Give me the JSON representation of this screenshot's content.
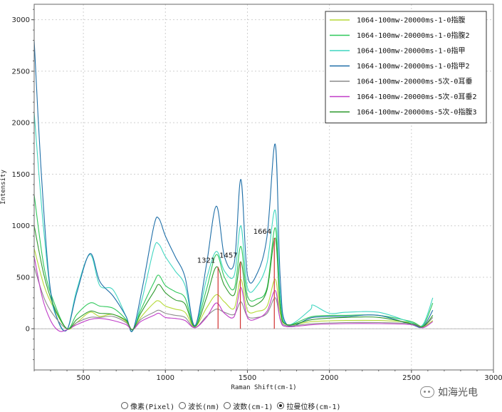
{
  "chart_data": {
    "type": "line",
    "title": "",
    "xlabel": "Raman Shift(cm-1)",
    "ylabel": "Intensity",
    "xlim": [
      200,
      3000
    ],
    "ylim": [
      -400,
      3150
    ],
    "xticks": [
      500,
      1000,
      1500,
      2000,
      2500,
      3000
    ],
    "yticks": [
      0,
      500,
      1000,
      1500,
      2000,
      2500,
      3000
    ],
    "grid": true,
    "legend_position": "top-right",
    "series": [
      {
        "name": "1064-100mw-20000ms-1-0指腹",
        "color": "#b5d936",
        "points": [
          [
            200,
            780
          ],
          [
            260,
            420
          ],
          [
            320,
            200
          ],
          [
            400,
            0
          ],
          [
            460,
            60
          ],
          [
            540,
            160
          ],
          [
            600,
            120
          ],
          [
            680,
            140
          ],
          [
            760,
            70
          ],
          [
            800,
            -10
          ],
          [
            850,
            110
          ],
          [
            930,
            250
          ],
          [
            960,
            270
          ],
          [
            1000,
            220
          ],
          [
            1060,
            190
          ],
          [
            1120,
            160
          ],
          [
            1180,
            20
          ],
          [
            1250,
            200
          ],
          [
            1310,
            330
          ],
          [
            1360,
            260
          ],
          [
            1420,
            200
          ],
          [
            1460,
            480
          ],
          [
            1500,
            180
          ],
          [
            1560,
            170
          ],
          [
            1620,
            220
          ],
          [
            1670,
            480
          ],
          [
            1700,
            150
          ],
          [
            1740,
            40
          ],
          [
            1900,
            70
          ],
          [
            2100,
            80
          ],
          [
            2300,
            80
          ],
          [
            2500,
            60
          ],
          [
            2570,
            20
          ],
          [
            2630,
            80
          ]
        ]
      },
      {
        "name": "1064-100mw-20000ms-1-0指腹2",
        "color": "#2ec85a",
        "points": [
          [
            200,
            1300
          ],
          [
            260,
            600
          ],
          [
            320,
            260
          ],
          [
            400,
            0
          ],
          [
            460,
            140
          ],
          [
            540,
            250
          ],
          [
            600,
            220
          ],
          [
            680,
            200
          ],
          [
            760,
            90
          ],
          [
            800,
            -10
          ],
          [
            850,
            180
          ],
          [
            930,
            450
          ],
          [
            960,
            520
          ],
          [
            1000,
            420
          ],
          [
            1060,
            360
          ],
          [
            1120,
            300
          ],
          [
            1180,
            30
          ],
          [
            1250,
            380
          ],
          [
            1310,
            720
          ],
          [
            1360,
            500
          ],
          [
            1420,
            390
          ],
          [
            1460,
            800
          ],
          [
            1500,
            320
          ],
          [
            1560,
            290
          ],
          [
            1620,
            400
          ],
          [
            1670,
            980
          ],
          [
            1700,
            260
          ],
          [
            1740,
            40
          ],
          [
            1900,
            120
          ],
          [
            2100,
            130
          ],
          [
            2300,
            130
          ],
          [
            2500,
            70
          ],
          [
            2570,
            30
          ],
          [
            2630,
            250
          ]
        ]
      },
      {
        "name": "1064-100mw-20000ms-1-0指甲",
        "color": "#3fd6c0",
        "points": [
          [
            200,
            2100
          ],
          [
            250,
            1100
          ],
          [
            300,
            350
          ],
          [
            340,
            100
          ],
          [
            400,
            -10
          ],
          [
            460,
            380
          ],
          [
            540,
            720
          ],
          [
            600,
            420
          ],
          [
            680,
            380
          ],
          [
            760,
            120
          ],
          [
            800,
            -20
          ],
          [
            860,
            300
          ],
          [
            930,
            780
          ],
          [
            960,
            820
          ],
          [
            1000,
            700
          ],
          [
            1060,
            560
          ],
          [
            1120,
            420
          ],
          [
            1180,
            30
          ],
          [
            1250,
            480
          ],
          [
            1310,
            750
          ],
          [
            1360,
            560
          ],
          [
            1420,
            520
          ],
          [
            1460,
            1000
          ],
          [
            1500,
            400
          ],
          [
            1560,
            420
          ],
          [
            1620,
            640
          ],
          [
            1670,
            1150
          ],
          [
            1700,
            350
          ],
          [
            1740,
            40
          ],
          [
            1880,
            180
          ],
          [
            1900,
            230
          ],
          [
            2000,
            150
          ],
          [
            2100,
            160
          ],
          [
            2300,
            160
          ],
          [
            2500,
            60
          ],
          [
            2570,
            40
          ],
          [
            2630,
            300
          ]
        ]
      },
      {
        "name": "1064-100mw-20000ms-1-0指甲2",
        "color": "#1f6fa8",
        "points": [
          [
            200,
            2800
          ],
          [
            240,
            1600
          ],
          [
            290,
            500
          ],
          [
            340,
            100
          ],
          [
            400,
            -10
          ],
          [
            460,
            350
          ],
          [
            540,
            730
          ],
          [
            600,
            460
          ],
          [
            680,
            320
          ],
          [
            760,
            120
          ],
          [
            800,
            -20
          ],
          [
            860,
            400
          ],
          [
            930,
            1000
          ],
          [
            960,
            1070
          ],
          [
            1000,
            900
          ],
          [
            1060,
            700
          ],
          [
            1120,
            500
          ],
          [
            1180,
            30
          ],
          [
            1250,
            620
          ],
          [
            1310,
            1190
          ],
          [
            1360,
            700
          ],
          [
            1420,
            640
          ],
          [
            1460,
            1450
          ],
          [
            1500,
            520
          ],
          [
            1560,
            540
          ],
          [
            1620,
            900
          ],
          [
            1670,
            1790
          ],
          [
            1700,
            500
          ],
          [
            1740,
            40
          ],
          [
            1900,
            110
          ],
          [
            2100,
            120
          ],
          [
            2300,
            130
          ],
          [
            2500,
            40
          ],
          [
            2570,
            20
          ],
          [
            2630,
            180
          ]
        ]
      },
      {
        "name": "1064-100mw-20000ms-5次-0耳垂",
        "color": "#8c8c8c",
        "points": [
          [
            200,
            600
          ],
          [
            260,
            300
          ],
          [
            320,
            130
          ],
          [
            400,
            0
          ],
          [
            460,
            60
          ],
          [
            540,
            110
          ],
          [
            600,
            110
          ],
          [
            680,
            120
          ],
          [
            760,
            60
          ],
          [
            800,
            -10
          ],
          [
            850,
            90
          ],
          [
            930,
            160
          ],
          [
            960,
            180
          ],
          [
            1000,
            150
          ],
          [
            1060,
            130
          ],
          [
            1120,
            110
          ],
          [
            1180,
            10
          ],
          [
            1250,
            120
          ],
          [
            1310,
            190
          ],
          [
            1360,
            160
          ],
          [
            1420,
            140
          ],
          [
            1460,
            260
          ],
          [
            1500,
            120
          ],
          [
            1560,
            110
          ],
          [
            1620,
            150
          ],
          [
            1670,
            300
          ],
          [
            1700,
            100
          ],
          [
            1740,
            30
          ],
          [
            1900,
            50
          ],
          [
            2100,
            60
          ],
          [
            2300,
            60
          ],
          [
            2500,
            50
          ],
          [
            2570,
            20
          ],
          [
            2630,
            110
          ]
        ]
      },
      {
        "name": "1064-100mw-20000ms-5次-0耳垂2",
        "color": "#c03cc8",
        "points": [
          [
            200,
            700
          ],
          [
            250,
            300
          ],
          [
            300,
            80
          ],
          [
            350,
            -20
          ],
          [
            400,
            -10
          ],
          [
            460,
            40
          ],
          [
            540,
            90
          ],
          [
            600,
            100
          ],
          [
            680,
            80
          ],
          [
            760,
            40
          ],
          [
            800,
            -10
          ],
          [
            850,
            70
          ],
          [
            930,
            130
          ],
          [
            960,
            150
          ],
          [
            1000,
            110
          ],
          [
            1060,
            100
          ],
          [
            1120,
            80
          ],
          [
            1180,
            10
          ],
          [
            1250,
            110
          ],
          [
            1310,
            250
          ],
          [
            1360,
            150
          ],
          [
            1420,
            120
          ],
          [
            1460,
            400
          ],
          [
            1500,
            110
          ],
          [
            1560,
            100
          ],
          [
            1620,
            170
          ],
          [
            1670,
            370
          ],
          [
            1700,
            90
          ],
          [
            1740,
            20
          ],
          [
            1900,
            40
          ],
          [
            2100,
            50
          ],
          [
            2300,
            50
          ],
          [
            2500,
            40
          ],
          [
            2570,
            10
          ],
          [
            2630,
            70
          ]
        ]
      },
      {
        "name": "1064-100mw-20000ms-5次-0指腹3",
        "color": "#2e9a2e",
        "points": [
          [
            200,
            1000
          ],
          [
            260,
            520
          ],
          [
            320,
            220
          ],
          [
            400,
            0
          ],
          [
            460,
            90
          ],
          [
            540,
            170
          ],
          [
            600,
            150
          ],
          [
            680,
            140
          ],
          [
            760,
            80
          ],
          [
            800,
            -10
          ],
          [
            850,
            150
          ],
          [
            930,
            360
          ],
          [
            960,
            430
          ],
          [
            1000,
            350
          ],
          [
            1060,
            280
          ],
          [
            1120,
            240
          ],
          [
            1180,
            20
          ],
          [
            1250,
            300
          ],
          [
            1310,
            600
          ],
          [
            1360,
            420
          ],
          [
            1420,
            330
          ],
          [
            1460,
            650
          ],
          [
            1500,
            260
          ],
          [
            1560,
            240
          ],
          [
            1620,
            380
          ],
          [
            1670,
            880
          ],
          [
            1700,
            210
          ],
          [
            1740,
            40
          ],
          [
            1900,
            90
          ],
          [
            2100,
            110
          ],
          [
            2300,
            110
          ],
          [
            2500,
            50
          ],
          [
            2570,
            20
          ],
          [
            2630,
            130
          ]
        ]
      }
    ],
    "peak_markers": [
      {
        "label": "1321",
        "x": 1321,
        "y": 600,
        "color": "#d03030"
      },
      {
        "label": "1457",
        "x": 1457,
        "y": 650,
        "color": "#d03030"
      },
      {
        "label": "1664",
        "x": 1664,
        "y": 880,
        "color": "#d03030"
      }
    ]
  },
  "units_bar": {
    "options": [
      {
        "label": "像素(Pixel)",
        "checked": false
      },
      {
        "label": "波长(nm)",
        "checked": false
      },
      {
        "label": "波数(cm-1)",
        "checked": false
      },
      {
        "label": "拉曼位移(cm-1)",
        "checked": true
      }
    ]
  },
  "watermark": {
    "text": "如海光电",
    "icon": "wechat-icon"
  }
}
